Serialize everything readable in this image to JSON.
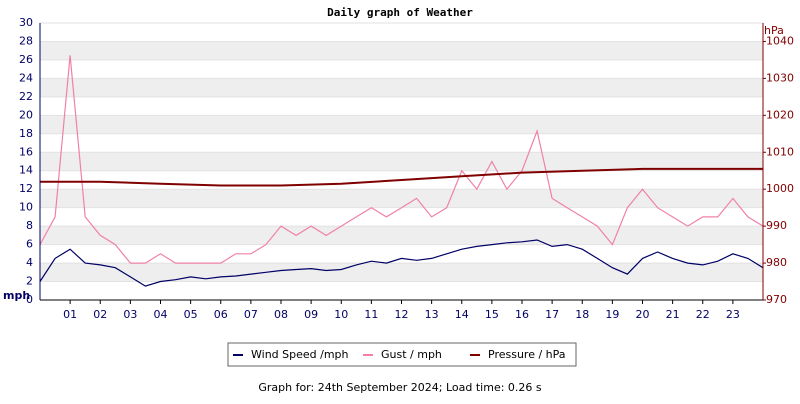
{
  "chart_data": {
    "type": "line",
    "title": "Daily graph of Weather",
    "y_label": "mph",
    "y2_label": "hPa",
    "footer": "Graph for: 24th September 2024; Load time: 0.26 s",
    "xlim": [
      0,
      24
    ],
    "xticks": [
      {
        "value": 1,
        "label": "01"
      },
      {
        "value": 2,
        "label": "02"
      },
      {
        "value": 3,
        "label": "03"
      },
      {
        "value": 4,
        "label": "04"
      },
      {
        "value": 5,
        "label": "05"
      },
      {
        "value": 6,
        "label": "06"
      },
      {
        "value": 7,
        "label": "07"
      },
      {
        "value": 8,
        "label": "08"
      },
      {
        "value": 9,
        "label": "09"
      },
      {
        "value": 10,
        "label": "10"
      },
      {
        "value": 11,
        "label": "11"
      },
      {
        "value": 12,
        "label": "12"
      },
      {
        "value": 13,
        "label": "13"
      },
      {
        "value": 14,
        "label": "14"
      },
      {
        "value": 15,
        "label": "15"
      },
      {
        "value": 16,
        "label": "16"
      },
      {
        "value": 17,
        "label": "17"
      },
      {
        "value": 18,
        "label": "18"
      },
      {
        "value": 19,
        "label": "19"
      },
      {
        "value": 20,
        "label": "20"
      },
      {
        "value": 21,
        "label": "21"
      },
      {
        "value": 22,
        "label": "22"
      },
      {
        "value": 23,
        "label": "23"
      }
    ],
    "ylim": [
      0,
      30
    ],
    "yticks": [
      0,
      2,
      4,
      6,
      8,
      10,
      12,
      14,
      16,
      18,
      20,
      22,
      24,
      26,
      28,
      30
    ],
    "y2lim": [
      970,
      1045
    ],
    "y2ticks": [
      970,
      980,
      990,
      1000,
      1010,
      1020,
      1030,
      1040
    ],
    "grid": true,
    "series": [
      {
        "name": "Gust / mph",
        "color": "#f080a8",
        "x": [
          0,
          0.5,
          1,
          1.5,
          2,
          2.5,
          3,
          3.5,
          4,
          4.5,
          5,
          5.5,
          6,
          6.5,
          7,
          7.5,
          8,
          8.5,
          9,
          9.5,
          10,
          10.5,
          11,
          11.5,
          12,
          12.5,
          13,
          13.5,
          14,
          14.5,
          15,
          15.5,
          16,
          16.5,
          17,
          17.5,
          18,
          18.5,
          19,
          19.5,
          20,
          20.5,
          21,
          21.5,
          22,
          22.5,
          23,
          23.5,
          24
        ],
        "values": [
          6,
          9,
          26.5,
          9,
          7,
          6,
          4,
          4,
          5,
          4,
          4,
          4,
          4,
          5,
          5,
          6,
          8,
          7,
          8,
          7,
          8,
          9,
          10,
          9,
          10,
          11,
          9,
          10,
          14,
          12,
          15,
          12,
          14,
          18.3,
          11,
          10,
          9,
          8,
          6,
          10,
          12,
          10,
          9,
          8,
          9,
          9,
          11,
          9,
          8
        ]
      },
      {
        "name": "Wind Speed /mph",
        "color": "#000066",
        "x": [
          0,
          0.5,
          1,
          1.5,
          2,
          2.5,
          3,
          3.5,
          4,
          4.5,
          5,
          5.5,
          6,
          6.5,
          7,
          7.5,
          8,
          8.5,
          9,
          9.5,
          10,
          10.5,
          11,
          11.5,
          12,
          12.5,
          13,
          13.5,
          14,
          14.5,
          15,
          15.5,
          16,
          16.5,
          17,
          17.5,
          18,
          18.5,
          19,
          19.5,
          20,
          20.5,
          21,
          21.5,
          22,
          22.5,
          23,
          23.5,
          24
        ],
        "values": [
          2,
          4.5,
          5.5,
          4,
          3.8,
          3.5,
          2.5,
          1.5,
          2,
          2.2,
          2.5,
          2.3,
          2.5,
          2.6,
          2.8,
          3,
          3.2,
          3.3,
          3.4,
          3.2,
          3.3,
          3.8,
          4.2,
          4,
          4.5,
          4.3,
          4.5,
          5,
          5.5,
          5.8,
          6,
          6.2,
          6.3,
          6.5,
          5.8,
          6,
          5.5,
          4.5,
          3.5,
          2.8,
          4.5,
          5.2,
          4.5,
          4,
          3.8,
          4.2,
          5,
          4.5,
          3.5
        ]
      },
      {
        "name": "Pressure / hPa",
        "color": "#800000",
        "axis": "y2",
        "x": [
          0,
          2,
          4,
          6,
          8,
          10,
          12,
          14,
          16,
          18,
          20,
          22,
          24
        ],
        "values": [
          1002,
          1002,
          1001.5,
          1001,
          1001,
          1001.5,
          1002.5,
          1003.5,
          1004.5,
          1005,
          1005.5,
          1005.5,
          1005.5
        ]
      }
    ],
    "legend_order": [
      1,
      0,
      2
    ]
  }
}
